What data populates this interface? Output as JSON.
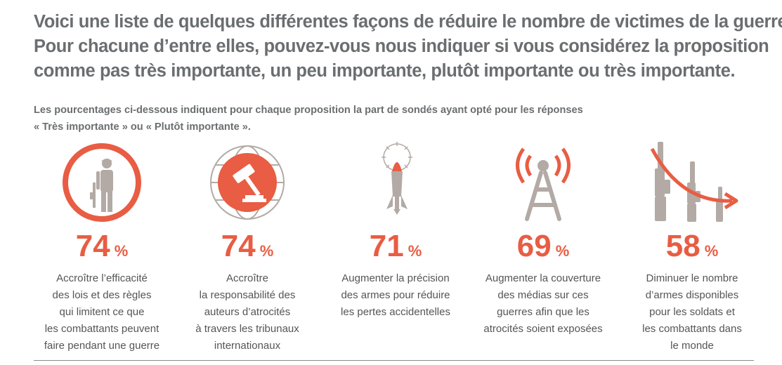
{
  "title_lines": [
    "Voici une liste de quelques différentes façons de réduire le nombre de victimes de la guerre.",
    "Pour chacune d’entre elles, pouvez-vous nous indiquer si vous considérez la proposition",
    "comme pas très importante, un peu importante, plutôt importante ou très importante."
  ],
  "subtitle_lines": [
    "Les pourcentages ci-dessous indiquent pour chaque proposition la part de sondés ayant opté pour les réponses",
    "« Très importante » ou « Plutôt importante »."
  ],
  "colors": {
    "accent": "#e85d43",
    "icon_grey": "#b3aaa5",
    "text": "#555555",
    "title": "#6b6e70"
  },
  "chart_data": {
    "type": "table",
    "unit": "%",
    "items": [
      {
        "value": 74,
        "icon": "soldier-in-circle-icon",
        "label_lines": [
          "Accroître l’efficacité",
          "des lois et des règles",
          "qui limitent ce que",
          "les combattants peuvent",
          "faire pendant une guerre"
        ]
      },
      {
        "value": 74,
        "icon": "gavel-globe-icon",
        "label_lines": [
          "Accroître",
          "la responsabilité des",
          "auteurs d’atrocités",
          "à travers les tribunaux",
          "internationaux"
        ]
      },
      {
        "value": 71,
        "icon": "missile-target-icon",
        "label_lines": [
          "Augmenter la précision",
          "des armes pour réduire",
          "les pertes accidentelles"
        ]
      },
      {
        "value": 69,
        "icon": "broadcast-tower-icon",
        "label_lines": [
          "Augmenter la couverture",
          "des médias sur ces",
          "guerres afin que les",
          "atrocités soient exposées"
        ]
      },
      {
        "value": 58,
        "icon": "decreasing-rifles-icon",
        "label_lines": [
          "Diminuer le nombre",
          "d’armes disponibles",
          "pour les soldats et",
          "les combattants dans",
          "le monde"
        ]
      }
    ]
  }
}
